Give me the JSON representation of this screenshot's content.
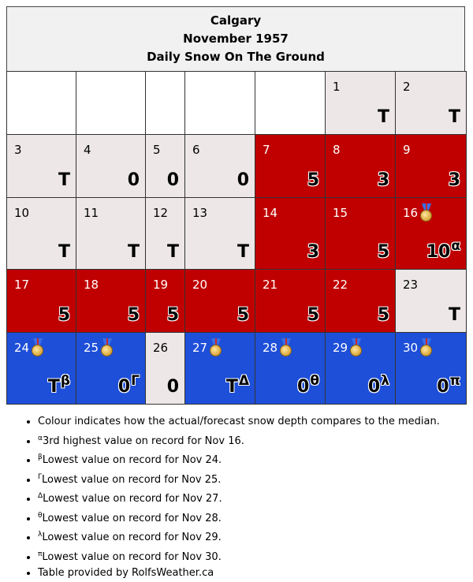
{
  "header": {
    "city": "Calgary",
    "month": "November 1957",
    "subtitle": "Daily Snow On The Ground"
  },
  "colors": {
    "red": "#c00000",
    "blue": "#1e4fd8",
    "neutral": "#ede7e7",
    "white": "#ffffff"
  },
  "rows": [
    [
      {
        "day": "",
        "val": "",
        "bg": "white"
      },
      {
        "day": "",
        "val": "",
        "bg": "white"
      },
      {
        "day": "",
        "val": "",
        "bg": "white"
      },
      {
        "day": "",
        "val": "",
        "bg": "white"
      },
      {
        "day": "",
        "val": "",
        "bg": "white"
      },
      {
        "day": "1",
        "val": "T",
        "bg": "neutral"
      },
      {
        "day": "2",
        "val": "T",
        "bg": "neutral"
      }
    ],
    [
      {
        "day": "3",
        "val": "T",
        "bg": "neutral"
      },
      {
        "day": "4",
        "val": "0",
        "bg": "neutral"
      },
      {
        "day": "5",
        "val": "0",
        "bg": "neutral"
      },
      {
        "day": "6",
        "val": "0",
        "bg": "neutral"
      },
      {
        "day": "7",
        "val": "5",
        "bg": "red"
      },
      {
        "day": "8",
        "val": "3",
        "bg": "red"
      },
      {
        "day": "9",
        "val": "3",
        "bg": "red"
      }
    ],
    [
      {
        "day": "10",
        "val": "T",
        "bg": "neutral"
      },
      {
        "day": "11",
        "val": "T",
        "bg": "neutral"
      },
      {
        "day": "12",
        "val": "T",
        "bg": "neutral"
      },
      {
        "day": "13",
        "val": "T",
        "bg": "neutral"
      },
      {
        "day": "14",
        "val": "3",
        "bg": "red"
      },
      {
        "day": "15",
        "val": "5",
        "bg": "red"
      },
      {
        "day": "16",
        "val": "10",
        "bg": "red",
        "mark": "α",
        "medal": true
      }
    ],
    [
      {
        "day": "17",
        "val": "5",
        "bg": "red"
      },
      {
        "day": "18",
        "val": "5",
        "bg": "red"
      },
      {
        "day": "19",
        "val": "5",
        "bg": "red"
      },
      {
        "day": "20",
        "val": "5",
        "bg": "red"
      },
      {
        "day": "21",
        "val": "5",
        "bg": "red"
      },
      {
        "day": "22",
        "val": "5",
        "bg": "red"
      },
      {
        "day": "23",
        "val": "T",
        "bg": "neutral"
      }
    ],
    [
      {
        "day": "24",
        "val": "T",
        "bg": "blue",
        "mark": "β",
        "medal": true
      },
      {
        "day": "25",
        "val": "0",
        "bg": "blue",
        "mark": "Γ",
        "medal": true
      },
      {
        "day": "26",
        "val": "0",
        "bg": "neutral"
      },
      {
        "day": "27",
        "val": "T",
        "bg": "blue",
        "mark": "Δ",
        "medal": true
      },
      {
        "day": "28",
        "val": "0",
        "bg": "blue",
        "mark": "θ",
        "medal": true
      },
      {
        "day": "29",
        "val": "0",
        "bg": "blue",
        "mark": "λ",
        "medal": true
      },
      {
        "day": "30",
        "val": "0",
        "bg": "blue",
        "mark": "π",
        "medal": true
      }
    ]
  ],
  "notes": [
    {
      "mark": "",
      "text": "Colour indicates how the actual/forecast snow depth compares to the median."
    },
    {
      "mark": "α",
      "text": "3rd highest value on record for Nov 16."
    },
    {
      "mark": "β",
      "text": "Lowest value on record for Nov 24."
    },
    {
      "mark": "Γ",
      "text": "Lowest value on record for Nov 25."
    },
    {
      "mark": "Δ",
      "text": "Lowest value on record for Nov 27."
    },
    {
      "mark": "θ",
      "text": "Lowest value on record for Nov 28."
    },
    {
      "mark": "λ",
      "text": "Lowest value on record for Nov 29."
    },
    {
      "mark": "π",
      "text": "Lowest value on record for Nov 30."
    },
    {
      "mark": "",
      "text": "Table provided by RolfsWeather.ca"
    }
  ]
}
